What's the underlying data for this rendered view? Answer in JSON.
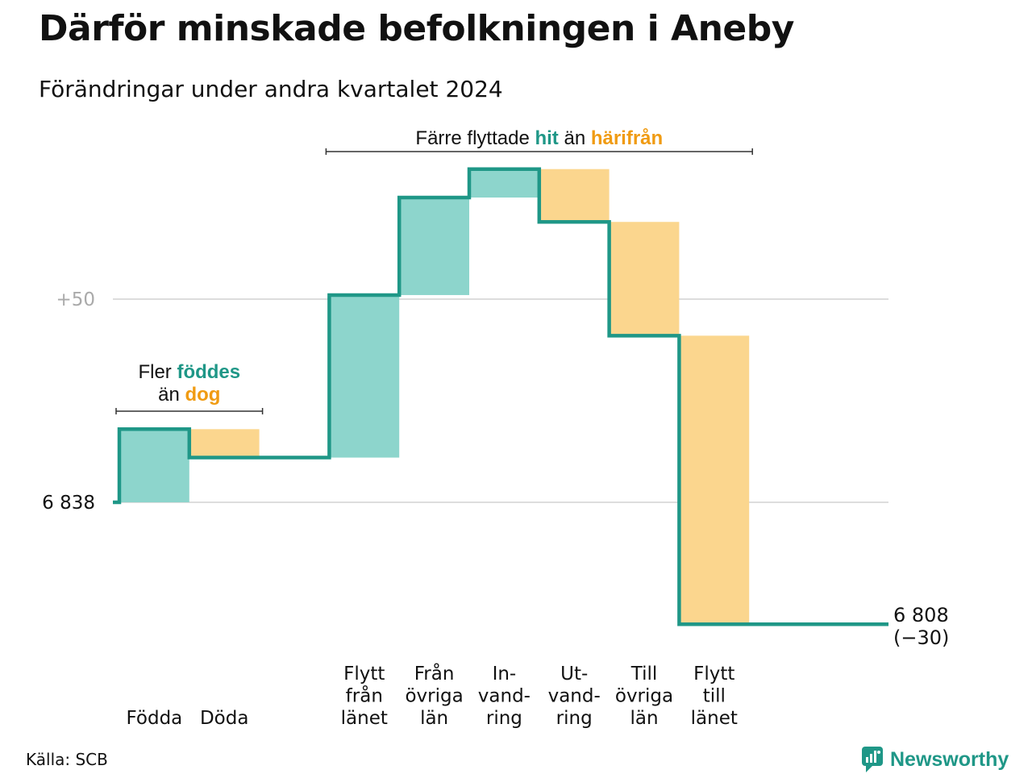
{
  "header": {
    "title": "Därför minskade befolkningen i Aneby",
    "subtitle": "Förändringar under andra kvartalet 2024"
  },
  "footer": {
    "source": "Källa: SCB",
    "brand": "Newsworthy"
  },
  "colors": {
    "increase_fill": "#8dd5cc",
    "decrease_fill": "#fbd68e",
    "line": "#1f9787",
    "accent_teal": "#1f9787",
    "accent_orange": "#f09b12",
    "grid": "#dddddd",
    "tick_muted": "#aaaaaa"
  },
  "chart_data": {
    "type": "waterfall",
    "start_value": 6838,
    "start_label": "6 838",
    "end_value": 6808,
    "end_label": "6 808",
    "end_change_label": "(−30)",
    "y_reference_lines": [
      {
        "value": 6838,
        "label": "6 838"
      },
      {
        "value": 6888,
        "label": "+50"
      }
    ],
    "steps": [
      {
        "label": [
          "Födda"
        ],
        "change": 18
      },
      {
        "label": [
          "Döda"
        ],
        "change": -7
      },
      {
        "label": [],
        "change": 0
      },
      {
        "label": [
          "Flytt",
          "från",
          "länet"
        ],
        "change": 40
      },
      {
        "label": [
          "Från",
          "övriga",
          "län"
        ],
        "change": 24
      },
      {
        "label": [
          "In-",
          "vand-",
          "ring"
        ],
        "change": 7
      },
      {
        "label": [
          "Ut-",
          "vand-",
          "ring"
        ],
        "change": -13
      },
      {
        "label": [
          "Till",
          "övriga",
          "län"
        ],
        "change": -28
      },
      {
        "label": [
          "Flytt",
          "till",
          "länet"
        ],
        "change": -71
      }
    ],
    "annotations": [
      {
        "id": "births",
        "lines": [
          [
            {
              "text": "Fler ",
              "hl": ""
            },
            {
              "text": "föddes",
              "hl": "teal"
            }
          ],
          [
            {
              "text": "än ",
              "hl": ""
            },
            {
              "text": "dog",
              "hl": "orange"
            }
          ]
        ],
        "span": [
          0,
          1
        ]
      },
      {
        "id": "moves",
        "lines": [
          [
            {
              "text": "Färre flyttade ",
              "hl": ""
            },
            {
              "text": "hit",
              "hl": "teal"
            },
            {
              "text": " än ",
              "hl": ""
            },
            {
              "text": "härifrån",
              "hl": "orange"
            }
          ]
        ],
        "span": [
          3,
          8
        ]
      }
    ]
  }
}
